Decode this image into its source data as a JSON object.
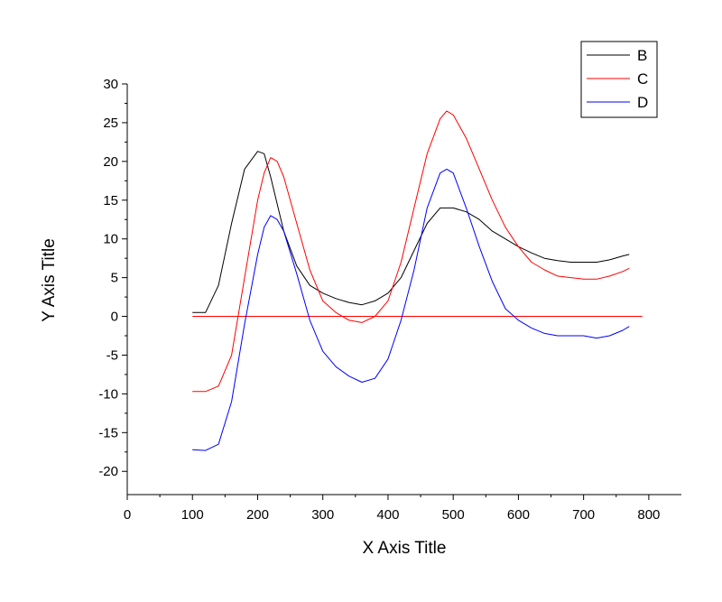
{
  "chart_data": {
    "type": "line",
    "title": "",
    "xlabel": "X Axis Title",
    "ylabel": "Y Axis Title",
    "xlim": [
      0,
      850
    ],
    "ylim": [
      -23,
      30
    ],
    "x_ticks": [
      0,
      100,
      200,
      300,
      400,
      500,
      600,
      700,
      800
    ],
    "y_ticks": [
      -20,
      -15,
      -10,
      -5,
      0,
      5,
      10,
      15,
      20,
      25,
      30
    ],
    "grid": false,
    "legend_position": "top-right",
    "series": [
      {
        "name": "B",
        "color": "#000000",
        "x": [
          100,
          120,
          140,
          160,
          180,
          200,
          210,
          220,
          240,
          260,
          280,
          300,
          320,
          340,
          360,
          380,
          400,
          420,
          440,
          460,
          480,
          500,
          520,
          540,
          560,
          580,
          600,
          620,
          640,
          660,
          680,
          700,
          720,
          740,
          760,
          770
        ],
        "y": [
          0.5,
          0.5,
          4,
          12,
          19,
          21.3,
          21,
          18,
          11,
          6.5,
          4,
          3,
          2.3,
          1.8,
          1.5,
          2,
          3,
          5,
          8.5,
          12,
          14,
          14,
          13.5,
          12.5,
          11,
          10,
          9,
          8.2,
          7.5,
          7.2,
          7,
          7,
          7,
          7.3,
          7.8,
          8
        ]
      },
      {
        "name": "C",
        "color": "#ff0000",
        "x": [
          100,
          110,
          120,
          130,
          140,
          150,
          160,
          170,
          180,
          200,
          210,
          220,
          230,
          240,
          260,
          280,
          300,
          320,
          340,
          360,
          380,
          400,
          420,
          440,
          460,
          480,
          490,
          500,
          520,
          540,
          560,
          580,
          600,
          620,
          640,
          660,
          680,
          700,
          720,
          740,
          760,
          770
        ],
        "y": [
          0,
          0,
          0,
          0,
          0,
          0,
          0,
          0,
          0,
          0,
          0,
          0,
          0,
          0,
          0,
          0,
          0,
          0,
          0,
          0,
          0,
          0,
          0,
          0,
          0,
          0,
          0,
          0,
          0,
          0,
          0,
          0,
          0,
          0,
          0,
          0,
          0,
          0,
          0,
          0,
          0,
          0
        ]
      },
      {
        "name": "D",
        "color": "#0000ff",
        "x": [
          100,
          120,
          140,
          160,
          180,
          200,
          210,
          220,
          230,
          240,
          260,
          280,
          300,
          320,
          340,
          360,
          380,
          400,
          420,
          440,
          460,
          480,
          490,
          500,
          520,
          540,
          560,
          580,
          600,
          620,
          640,
          660,
          680,
          700,
          720,
          740,
          760,
          770
        ],
        "y": [
          -17.2,
          -17.3,
          -16.5,
          -11,
          -1,
          8,
          11.5,
          13,
          12.5,
          11,
          5.5,
          -0.5,
          -4.5,
          -6.5,
          -7.7,
          -8.5,
          -8,
          -5.5,
          -0.5,
          6,
          14,
          18.5,
          19,
          18.5,
          14,
          9,
          4.5,
          1,
          -0.5,
          -1.5,
          -2.2,
          -2.5,
          -2.5,
          -2.5,
          -2.8,
          -2.5,
          -1.8,
          -1.3
        ]
      }
    ],
    "reference_lines": [
      {
        "y": 0,
        "x_from": 100,
        "x_to": 790,
        "color": "#ff0000"
      }
    ],
    "c_curve": {
      "x": [
        100,
        120,
        140,
        160,
        180,
        200,
        210,
        220,
        230,
        240,
        260,
        280,
        300,
        320,
        340,
        360,
        380,
        400,
        420,
        440,
        460,
        480,
        490,
        500,
        520,
        540,
        560,
        580,
        600,
        620,
        640,
        660,
        680,
        700,
        720,
        740,
        760,
        770
      ],
      "y": [
        -9.7,
        -9.7,
        -9,
        -5,
        5,
        15,
        18.5,
        20.5,
        20,
        18,
        12,
        6,
        2,
        0.5,
        -0.5,
        -0.8,
        0,
        2,
        7,
        14,
        21,
        25.5,
        26.5,
        26,
        23,
        19,
        15,
        11.5,
        9,
        7,
        6,
        5.2,
        5,
        4.8,
        4.8,
        5.2,
        5.8,
        6.2
      ]
    }
  }
}
